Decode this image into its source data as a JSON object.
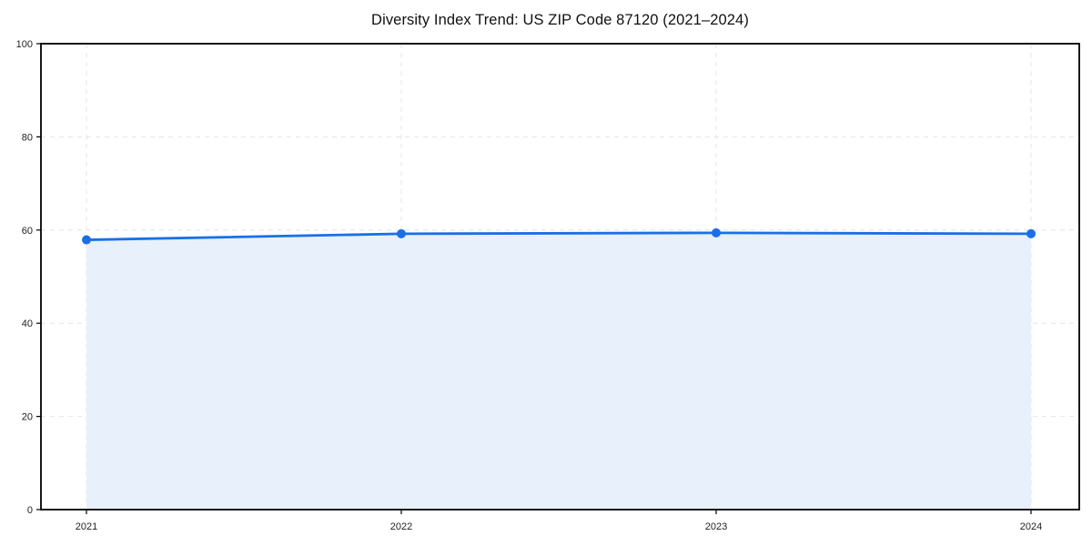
{
  "chart_data": {
    "type": "area",
    "title": "Diversity Index Trend: US ZIP Code 87120 (2021–2024)",
    "series_name": "Diversity Index",
    "x": [
      "2021",
      "2022",
      "2023",
      "2024"
    ],
    "values": [
      57.9,
      59.2,
      59.4,
      59.2
    ],
    "xlabel": "",
    "ylabel": "",
    "ylim": [
      0,
      100
    ],
    "yticks": [
      0,
      20,
      40,
      60,
      80,
      100
    ],
    "xticks": [
      "2021",
      "2022",
      "2023",
      "2024"
    ],
    "grid": "dashed-both-axes",
    "legend_position": "none",
    "line_color": "#1a6fe8",
    "marker_color": "#1a6fe8",
    "fill_color": "#e8f0fc",
    "gridline_color": "#e4e4e4",
    "spine_color": "#000000",
    "background_color": "#ffffff",
    "marker": "circle"
  }
}
